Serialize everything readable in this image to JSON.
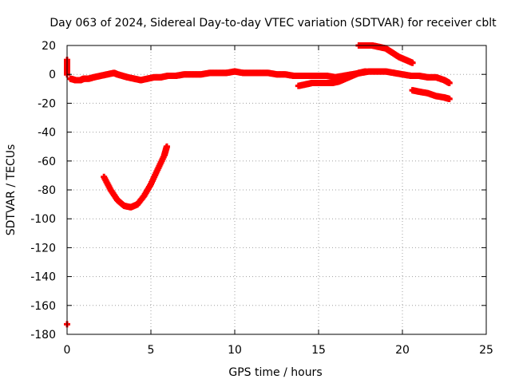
{
  "chart_data": {
    "type": "scatter",
    "title": "Day 063 of 2024, Sidereal Day-to-day VTEC variation (SDTVAR) for receiver cblt",
    "xlabel": "GPS time / hours",
    "ylabel": "SDTVAR / TECUs",
    "xlim": [
      0,
      25
    ],
    "ylim": [
      -180,
      20
    ],
    "xticks": [
      0,
      5,
      10,
      15,
      20,
      25
    ],
    "yticks": [
      20,
      0,
      -20,
      -40,
      -60,
      -80,
      -100,
      -120,
      -140,
      -160,
      -180
    ],
    "grid": true,
    "color": "#ff0000",
    "marker": "+",
    "series": [
      {
        "name": "isolated-0",
        "x": [
          0.0,
          0.0
        ],
        "y": [
          10,
          0
        ]
      },
      {
        "name": "isolated-low",
        "x": [
          0.0
        ],
        "y": [
          -173
        ]
      },
      {
        "name": "main-trace",
        "x": [
          0.2,
          0.5,
          0.8,
          1.0,
          1.3,
          1.6,
          2.0,
          2.4,
          2.8,
          3.0,
          3.3,
          3.6,
          4.0,
          4.4,
          4.8,
          5.2,
          5.6,
          6.0,
          6.5,
          7.0,
          7.5,
          8.0,
          8.5,
          9.0,
          9.5,
          10.0,
          10.5,
          11.0,
          11.5,
          12.0,
          12.5,
          13.0,
          13.5,
          14.0,
          14.5,
          15.0,
          15.5,
          16.0,
          16.5,
          17.0,
          17.5,
          18.0,
          18.5,
          19.0,
          19.5,
          20.0,
          20.5,
          21.0,
          21.5,
          22.0,
          22.5,
          22.8
        ],
        "y": [
          -3,
          -4,
          -4,
          -3,
          -3,
          -2,
          -1,
          0,
          1,
          0,
          -1,
          -2,
          -3,
          -4,
          -3,
          -2,
          -2,
          -1,
          -1,
          0,
          0,
          0,
          1,
          1,
          1,
          2,
          1,
          1,
          1,
          1,
          0,
          0,
          -1,
          -1,
          -1,
          -1,
          -1,
          -2,
          -1,
          0,
          1,
          2,
          2,
          2,
          1,
          0,
          -1,
          -1,
          -2,
          -2,
          -4,
          -6
        ]
      },
      {
        "name": "rising-segment",
        "x": [
          13.8,
          14.2,
          14.6,
          15.0,
          15.4,
          15.8,
          16.2,
          16.6,
          17.0,
          17.4,
          17.8
        ],
        "y": [
          -8,
          -7,
          -6,
          -6,
          -6,
          -6,
          -5,
          -3,
          -1,
          1,
          2
        ]
      },
      {
        "name": "upper-arc",
        "x": [
          17.4,
          17.8,
          18.2,
          18.6,
          19.0,
          19.4,
          19.8,
          20.2,
          20.6
        ],
        "y": [
          20,
          20,
          20,
          19,
          18,
          15,
          12,
          10,
          8
        ]
      },
      {
        "name": "lower-tail",
        "x": [
          20.6,
          21.0,
          21.5,
          22.0,
          22.5,
          22.8
        ],
        "y": [
          -11,
          -12,
          -13,
          -15,
          -16,
          -17
        ]
      },
      {
        "name": "dip-arc",
        "x": [
          2.2,
          2.6,
          3.0,
          3.4,
          3.8,
          4.2,
          4.6,
          5.0,
          5.4,
          5.8,
          5.95
        ],
        "y": [
          -71,
          -80,
          -87,
          -91,
          -92,
          -90,
          -84,
          -76,
          -66,
          -56,
          -50
        ]
      }
    ]
  }
}
